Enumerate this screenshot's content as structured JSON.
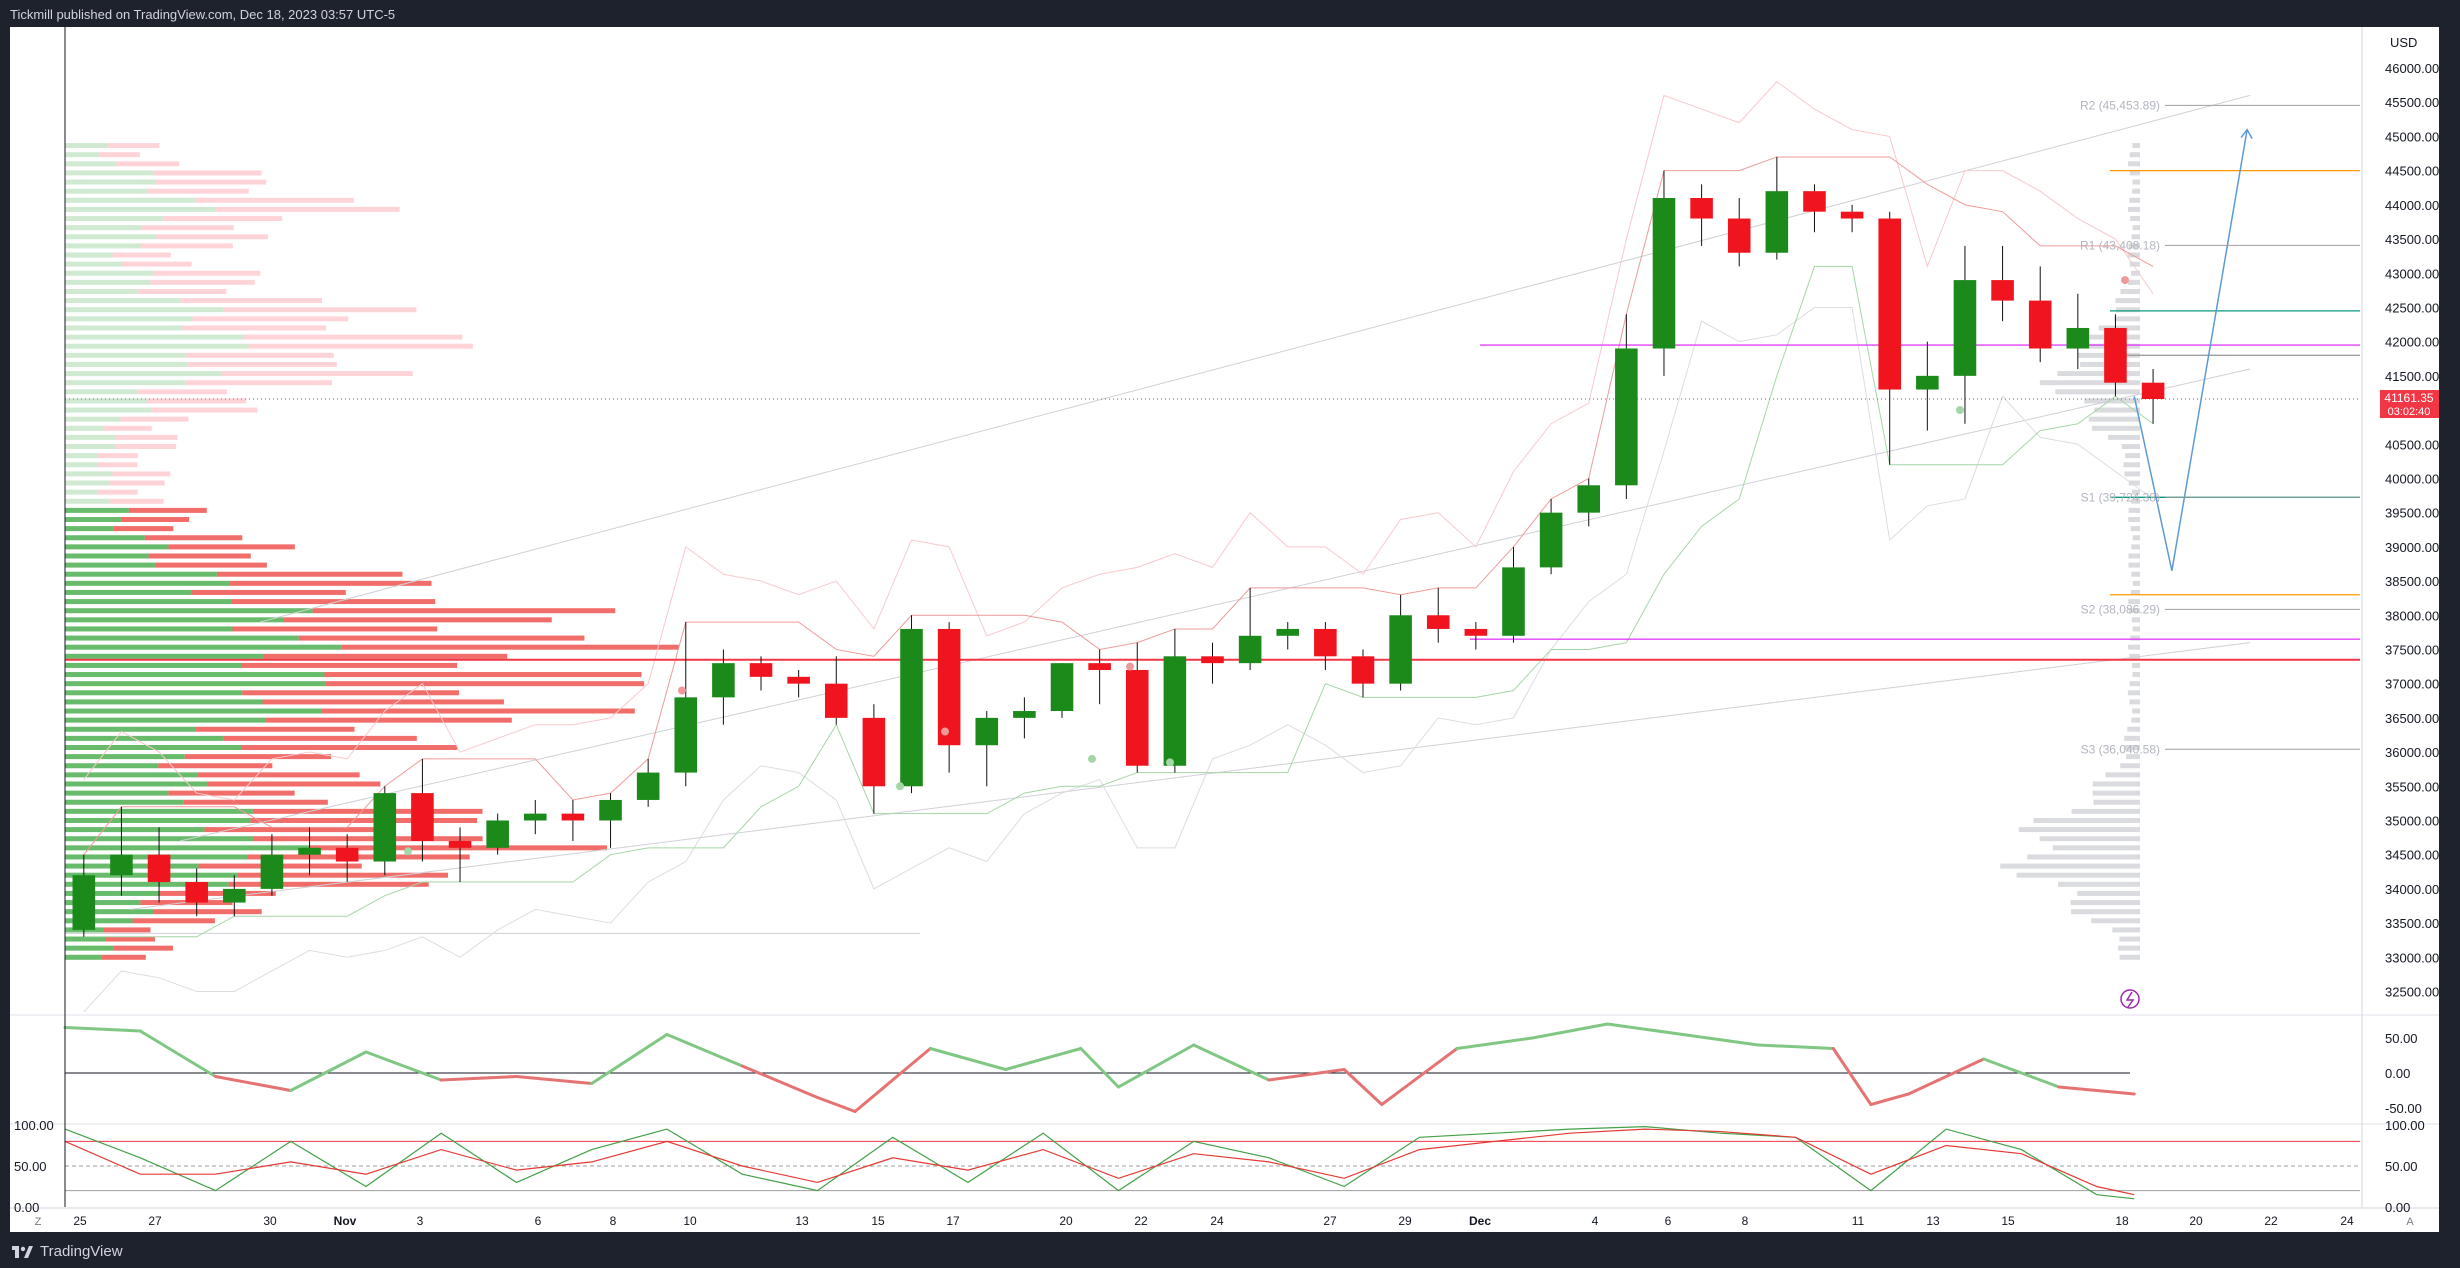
{
  "header": {
    "published": "Tickmill published on TradingView.com, Dec 18, 2023 03:57 UTC-5"
  },
  "footer": {
    "brand": "TradingView"
  },
  "price_axis": {
    "currency": "USD",
    "labels": [
      "46000.00",
      "45500.00",
      "45000.00",
      "44500.00",
      "44000.00",
      "43500.00",
      "43000.00",
      "42500.00",
      "42000.00",
      "41500.00",
      "41000.00",
      "40500.00",
      "40000.00",
      "39500.00",
      "39000.00",
      "38500.00",
      "38000.00",
      "37500.00",
      "37000.00",
      "36500.00",
      "36000.00",
      "35500.00",
      "35000.00",
      "34500.00",
      "34000.00",
      "33500.00",
      "33000.00",
      "32500.00"
    ],
    "last_price": "41161.35",
    "countdown": "03:02:40"
  },
  "time_axis": {
    "labels": [
      "25",
      "27",
      "30",
      "Nov",
      "3",
      "6",
      "8",
      "10",
      "13",
      "15",
      "17",
      "20",
      "22",
      "24",
      "27",
      "29",
      "Dec",
      "4",
      "6",
      "8",
      "11",
      "13",
      "15",
      "18",
      "20",
      "22",
      "24"
    ],
    "corner_left": "Z",
    "corner_right": "A"
  },
  "pivots": [
    {
      "label": "R2 (45,453.89)",
      "value": 45453.89
    },
    {
      "label": "R1 (43,408.18)",
      "value": 43408.18
    },
    {
      "label": "S1 (39,724.38)",
      "value": 39724.38
    },
    {
      "label": "S2 (38,086.29)",
      "value": 38086.29
    },
    {
      "label": "S3 (36,040.58)",
      "value": 36040.58
    }
  ],
  "osc1": {
    "labels": [
      "50.00",
      "0.00",
      "-50.00"
    ]
  },
  "osc2": {
    "labels_left": [
      "100.00",
      "50.00",
      "0.00"
    ],
    "labels_right": [
      "100.00",
      "50.00",
      "0.00"
    ]
  },
  "colors": {
    "up": "#089981",
    "down": "#f23645",
    "bull": "#1b8a1b",
    "bear": "#f0141e"
  },
  "chart_data": {
    "type": "candlestick",
    "symbol_currency": "USD",
    "timeframe": "4h",
    "x_range": [
      "2023-10-24",
      "2023-12-24"
    ],
    "ylim": [
      32200,
      46600
    ],
    "candles": [
      [
        "2023-10-24",
        33400,
        34500,
        33300,
        34200
      ],
      [
        "2023-10-25",
        34200,
        35200,
        33900,
        34500
      ],
      [
        "2023-10-26",
        34500,
        34900,
        33800,
        34100
      ],
      [
        "2023-10-27",
        34100,
        34300,
        33600,
        33800
      ],
      [
        "2023-10-28",
        33800,
        34200,
        33600,
        34000
      ],
      [
        "2023-10-29",
        34000,
        34800,
        33900,
        34500
      ],
      [
        "2023-10-30",
        34500,
        34900,
        34200,
        34600
      ],
      [
        "2023-10-31",
        34600,
        34800,
        34100,
        34400
      ],
      [
        "2023-11-01",
        34400,
        35500,
        34200,
        35400
      ],
      [
        "2023-11-02",
        35400,
        35900,
        34400,
        34700
      ],
      [
        "2023-11-03",
        34700,
        34900,
        34100,
        34600
      ],
      [
        "2023-11-04",
        34600,
        35100,
        34500,
        35000
      ],
      [
        "2023-11-05",
        35000,
        35300,
        34800,
        35100
      ],
      [
        "2023-11-06",
        35100,
        35300,
        34700,
        35000
      ],
      [
        "2023-11-07",
        35000,
        35400,
        34600,
        35300
      ],
      [
        "2023-11-08",
        35300,
        35900,
        35200,
        35700
      ],
      [
        "2023-11-09",
        35700,
        37900,
        35500,
        36800
      ],
      [
        "2023-11-10",
        36800,
        37500,
        36400,
        37300
      ],
      [
        "2023-11-11",
        37300,
        37400,
        36900,
        37100
      ],
      [
        "2023-11-12",
        37100,
        37200,
        36800,
        37000
      ],
      [
        "2023-11-13",
        37000,
        37400,
        36400,
        36500
      ],
      [
        "2023-11-14",
        36500,
        36700,
        35100,
        35500
      ],
      [
        "2023-11-15",
        35500,
        38000,
        35400,
        37800
      ],
      [
        "2023-11-16",
        37800,
        37900,
        35700,
        36100
      ],
      [
        "2023-11-17",
        36100,
        36600,
        35500,
        36500
      ],
      [
        "2023-11-18",
        36500,
        36800,
        36200,
        36600
      ],
      [
        "2023-11-19",
        36600,
        37300,
        36500,
        37300
      ],
      [
        "2023-11-20",
        37300,
        37500,
        36700,
        37200
      ],
      [
        "2023-11-21",
        37200,
        37600,
        35700,
        35800
      ],
      [
        "2023-11-22",
        35800,
        37800,
        35700,
        37400
      ],
      [
        "2023-11-23",
        37400,
        37600,
        37000,
        37300
      ],
      [
        "2023-11-24",
        37300,
        38400,
        37200,
        37700
      ],
      [
        "2023-11-25",
        37700,
        37900,
        37500,
        37800
      ],
      [
        "2023-11-26",
        37800,
        37900,
        37200,
        37400
      ],
      [
        "2023-11-27",
        37400,
        37500,
        36800,
        37000
      ],
      [
        "2023-11-28",
        37000,
        38300,
        36900,
        38000
      ],
      [
        "2023-11-29",
        38000,
        38400,
        37600,
        37800
      ],
      [
        "2023-11-30",
        37800,
        37900,
        37500,
        37700
      ],
      [
        "2023-12-01",
        37700,
        39000,
        37600,
        38700
      ],
      [
        "2023-12-02",
        38700,
        39700,
        38600,
        39500
      ],
      [
        "2023-12-03",
        39500,
        40000,
        39300,
        39900
      ],
      [
        "2023-12-04",
        39900,
        42400,
        39700,
        41900
      ],
      [
        "2023-12-05",
        41900,
        44500,
        41500,
        44100
      ],
      [
        "2023-12-06",
        44100,
        44300,
        43400,
        43800
      ],
      [
        "2023-12-07",
        43800,
        44100,
        43100,
        43300
      ],
      [
        "2023-12-08",
        43300,
        44700,
        43200,
        44200
      ],
      [
        "2023-12-09",
        44200,
        44300,
        43600,
        43900
      ],
      [
        "2023-12-10",
        43900,
        44000,
        43600,
        43800
      ],
      [
        "2023-12-11",
        43800,
        43900,
        40200,
        41300
      ],
      [
        "2023-12-12",
        41300,
        42000,
        40700,
        41500
      ],
      [
        "2023-12-13",
        41500,
        43400,
        40800,
        42900
      ],
      [
        "2023-12-14",
        42900,
        43400,
        42300,
        42600
      ],
      [
        "2023-12-15",
        42600,
        43100,
        41700,
        41900
      ],
      [
        "2023-12-16",
        41900,
        42700,
        41600,
        42200
      ],
      [
        "2023-12-17",
        42200,
        42400,
        41200,
        41400
      ],
      [
        "2023-12-18",
        41400,
        41600,
        40800,
        41161.35
      ]
    ],
    "horizontal_levels": [
      {
        "price": 41950,
        "color": "#e040fb"
      },
      {
        "price": 37650,
        "color": "#e040fb"
      },
      {
        "price": 37350,
        "color": "#f23645"
      },
      {
        "price": 44500,
        "color": "#ff9800"
      },
      {
        "price": 38300,
        "color": "#ff9800"
      },
      {
        "price": 42450,
        "color": "#089981"
      },
      {
        "price": 39724.38,
        "color": "#089981"
      },
      {
        "price": 41800,
        "color": "#9e9e9e"
      }
    ],
    "projection": [
      {
        "date": "2023-12-18",
        "price": 41200
      },
      {
        "date": "2023-12-19",
        "price": 38650
      },
      {
        "date": "2023-12-21",
        "price": 45100
      }
    ],
    "oscillator_rsi": {
      "ylim": [
        -70,
        80
      ],
      "x": [
        "2023-10-24",
        "2023-10-26",
        "2023-10-28",
        "2023-10-30",
        "2023-11-01",
        "2023-11-03",
        "2023-11-05",
        "2023-11-07",
        "2023-11-09",
        "2023-11-11",
        "2023-11-13",
        "2023-11-14",
        "2023-11-16",
        "2023-11-18",
        "2023-11-20",
        "2023-11-21",
        "2023-11-23",
        "2023-11-25",
        "2023-11-27",
        "2023-11-28",
        "2023-11-30",
        "2023-12-02",
        "2023-12-04",
        "2023-12-06",
        "2023-12-08",
        "2023-12-10",
        "2023-12-11",
        "2023-12-12",
        "2023-12-14",
        "2023-12-16",
        "2023-12-18"
      ],
      "values": [
        65,
        60,
        -5,
        -25,
        30,
        -10,
        -5,
        -15,
        55,
        10,
        -35,
        -55,
        35,
        5,
        35,
        -20,
        40,
        -10,
        5,
        -45,
        35,
        50,
        70,
        55,
        40,
        35,
        -45,
        -30,
        20,
        -20,
        -30
      ]
    },
    "oscillator_stoch": {
      "ylim": [
        0,
        100
      ],
      "x": [
        "2023-10-24",
        "2023-10-26",
        "2023-10-28",
        "2023-10-30",
        "2023-11-01",
        "2023-11-03",
        "2023-11-05",
        "2023-11-07",
        "2023-11-09",
        "2023-11-11",
        "2023-11-13",
        "2023-11-15",
        "2023-11-17",
        "2023-11-19",
        "2023-11-21",
        "2023-11-23",
        "2023-11-25",
        "2023-11-27",
        "2023-11-29",
        "2023-12-01",
        "2023-12-03",
        "2023-12-05",
        "2023-12-07",
        "2023-12-09",
        "2023-12-11",
        "2023-12-13",
        "2023-12-15",
        "2023-12-17",
        "2023-12-18"
      ],
      "series": [
        {
          "values": [
            95,
            60,
            20,
            80,
            25,
            90,
            30,
            70,
            95,
            40,
            20,
            85,
            30,
            90,
            20,
            80,
            60,
            25,
            85,
            90,
            95,
            98,
            90,
            85,
            20,
            95,
            70,
            15,
            10
          ]
        },
        {
          "values": [
            80,
            40,
            40,
            55,
            40,
            70,
            45,
            55,
            80,
            50,
            30,
            60,
            45,
            70,
            35,
            65,
            55,
            35,
            70,
            80,
            90,
            95,
            92,
            85,
            40,
            75,
            65,
            25,
            15
          ]
        }
      ]
    },
    "volume_profile": "left and right volume-by-price histograms (green/red, grey)"
  }
}
